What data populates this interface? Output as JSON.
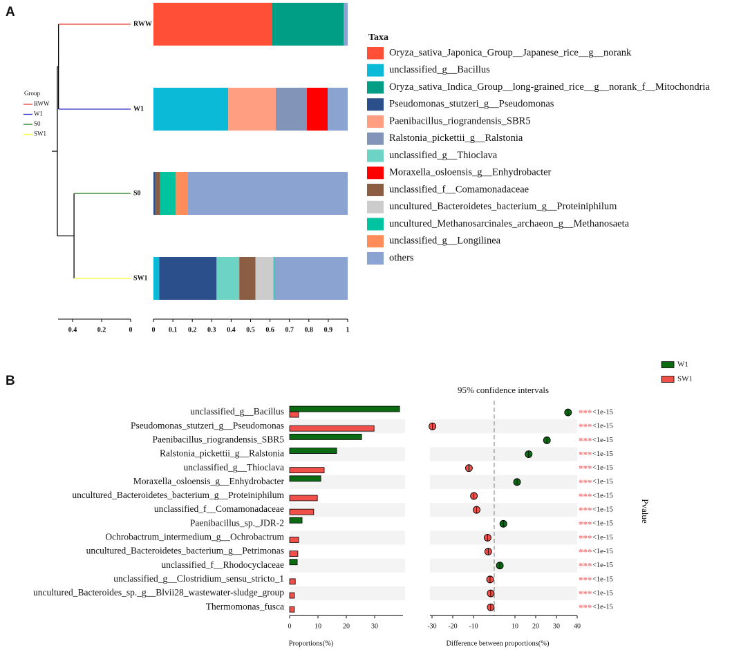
{
  "chart_data": [
    {
      "type": "stacked_bar_h",
      "panel": "A",
      "categories": [
        "RWW",
        "W1",
        "S0",
        "SW1"
      ],
      "xlim": [
        0,
        1
      ],
      "xticks": [
        0,
        0.1,
        0.2,
        0.3,
        0.4,
        0.5,
        0.6,
        0.7,
        0.8,
        0.9,
        1
      ],
      "legend_title": "Taxa",
      "series": [
        {
          "name": "Oryza_sativa_Japonica_Group__Japanese_rice__g__norank",
          "color": "#ff4f37",
          "values": [
            0.61,
            0,
            0,
            0
          ]
        },
        {
          "name": "unclassified_g__Bacillus",
          "color": "#0abad6",
          "values": [
            0,
            0.385,
            0,
            0.03
          ]
        },
        {
          "name": "Oryza_sativa_Indica_Group__long-grained_rice__g__norank_f__Mitochondria",
          "color": "#009e85",
          "values": [
            0.37,
            0,
            0,
            0
          ]
        },
        {
          "name": "Pseudomonas_stutzeri_g__Pseudomonas",
          "color": "#2b4f8a",
          "values": [
            0,
            0,
            0.01,
            0.295
          ]
        },
        {
          "name": "Paenibacillus_riograndensis_SBR5",
          "color": "#ff9e80",
          "values": [
            0,
            0.245,
            0,
            0
          ]
        },
        {
          "name": "Ralstonia_pickettii_g__Ralstonia",
          "color": "#8295b8",
          "values": [
            0,
            0.16,
            0,
            0
          ]
        },
        {
          "name": "unclassified_g__Thioclava",
          "color": "#6dd3c5",
          "values": [
            0,
            0,
            0,
            0.117
          ]
        },
        {
          "name": "Moraxella_osloensis_g__Enhydrobacter",
          "color": "#ff0000",
          "values": [
            0,
            0.107,
            0,
            0
          ]
        },
        {
          "name": "unclassified_f__Comamonadaceae",
          "color": "#8b5e44",
          "values": [
            0,
            0,
            0.025,
            0.083
          ]
        },
        {
          "name": "uncultured_Bacteroidetes_bacterium_g__Proteiniphilum",
          "color": "#cccccc",
          "values": [
            0,
            0,
            0,
            0.093
          ]
        },
        {
          "name": "uncultured_Methanosarcinales_archaeon_g__Methanosaeta",
          "color": "#00c4a0",
          "values": [
            0,
            0,
            0.08,
            0.004
          ]
        },
        {
          "name": "unclassified_g__Longilinea",
          "color": "#ff8c5a",
          "values": [
            0,
            0,
            0.06,
            0
          ]
        },
        {
          "name": "others",
          "color": "#8aa3d0",
          "values": [
            0.02,
            0.103,
            0.825,
            0.378
          ]
        }
      ],
      "dendrogram": {
        "legend_title": "Group",
        "colors": [
          "#e8403a",
          "#2a2acc",
          "#1a7a1a",
          "#ffff33"
        ],
        "xlim": [
          0.5,
          0
        ],
        "xticks": [
          0.4,
          0.2,
          0
        ],
        "tree": {
          "height": 0.505,
          "children": [
            {
              "height": 0.497,
              "children": [
                0,
                1
              ]
            },
            {
              "height": 0.39,
              "children": [
                2,
                3
              ]
            }
          ]
        }
      }
    },
    {
      "type": "grouped_bar_h",
      "panel": "B",
      "categories": [
        "unclassified_g__Bacillus",
        "Pseudomonas_stutzeri_g__Pseudomonas",
        "Paenibacillus_riograndensis_SBR5",
        "Ralstonia_pickettii_g__Ralstonia",
        "unclassified_g__Thioclava",
        "Moraxella_osloensis_g__Enhydrobacter",
        "uncultured_Bacteroidetes_bacterium_g__Proteiniphilum",
        "unclassified_f__Comamonadaceae",
        "Paenibacillus_sp._JDR-2",
        "Ochrobactrum_intermedium_g__Ochrobactrum",
        "uncultured_Bacteroidetes_bacterium_g__Petrimonas",
        "unclassified_f__Rhodocyclaceae",
        "unclassified_g__Clostridium_sensu_stricto_1",
        "uncultured_Bacteroides_sp._g__Blvii28_wastewater-sludge_group",
        "Thermomonas_fusca"
      ],
      "series": [
        {
          "name": "W1",
          "color": "#0b6b12",
          "values": [
            38.8,
            0,
            25.4,
            16.6,
            0,
            11.0,
            0,
            0,
            4.4,
            0,
            0,
            2.7,
            0,
            0,
            0
          ]
        },
        {
          "name": "SW1",
          "color": "#f0504a",
          "values": [
            3.2,
            29.8,
            0,
            0,
            12.2,
            0,
            9.8,
            8.5,
            0,
            3.2,
            2.9,
            0,
            2.0,
            1.7,
            1.7
          ]
        }
      ],
      "xlim": [
        0,
        40
      ],
      "xticks": [
        0,
        10,
        20,
        30
      ],
      "xlabel": "Proportions(%)"
    },
    {
      "type": "dot_diff",
      "title": "95% confidence intervals",
      "values": [
        35.6,
        -29.8,
        25.4,
        16.6,
        -12.2,
        11.0,
        -9.8,
        -8.5,
        4.4,
        -3.2,
        -2.9,
        2.7,
        -2.0,
        -1.7,
        -1.7
      ],
      "xlim": [
        -31,
        40
      ],
      "xticks": [
        -30,
        -20,
        -10,
        10,
        20,
        30,
        40
      ],
      "xlabel": "Difference between proportions(%)",
      "significance": [
        "***",
        "***",
        "***",
        "***",
        "***",
        "***",
        "***",
        "***",
        "***",
        "***",
        "***",
        "***",
        "***",
        "***",
        "***"
      ],
      "pvalues": [
        "<1e-15",
        "<1e-15",
        "<1e-15",
        "<1e-15",
        "<1e-15",
        "<1e-15",
        "<1e-15",
        "<1e-15",
        "<1e-15",
        "<1e-15",
        "<1e-15",
        "<1e-15",
        "<1e-15",
        "<1e-15",
        "<1e-15"
      ],
      "pvalue_label": "Pvalue"
    }
  ]
}
